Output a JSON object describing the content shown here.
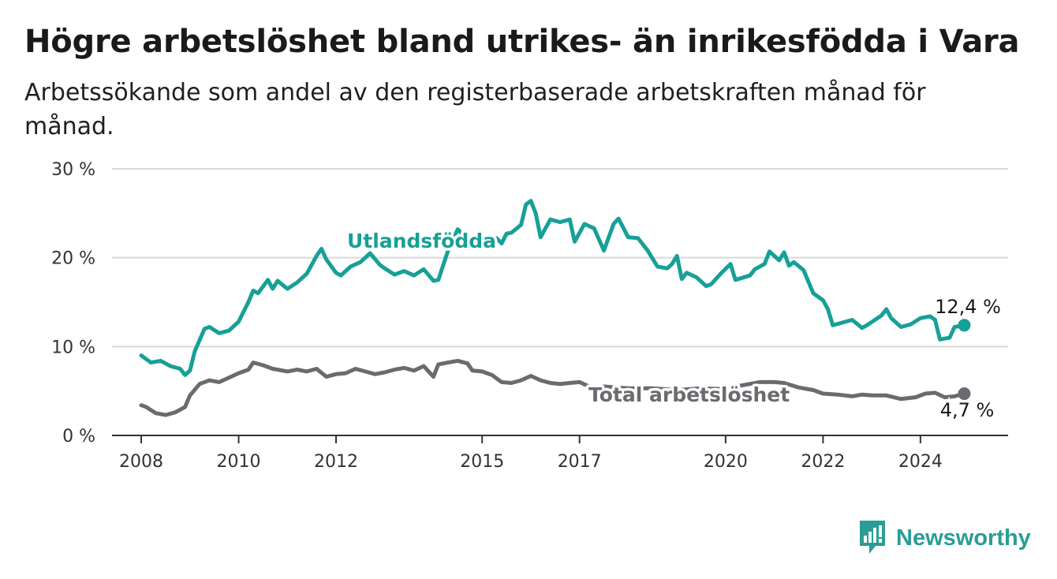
{
  "header": {
    "title": "Högre arbetslöshet bland utrikes- än inrikesfödda i Vara",
    "subtitle": "Arbetssökande som andel av den registerbaserade arbetskraften månad för månad."
  },
  "brand": {
    "name": "Newsworthy",
    "color": "#2a9d96"
  },
  "chart_data": {
    "type": "line",
    "x_axis": {
      "ticks": [
        {
          "value": 2008,
          "label": "2008"
        },
        {
          "value": 2010,
          "label": "2010"
        },
        {
          "value": 2012,
          "label": "2012"
        },
        {
          "value": 2015,
          "label": "2015"
        },
        {
          "value": 2017,
          "label": "2017"
        },
        {
          "value": 2020,
          "label": "2020"
        },
        {
          "value": 2022,
          "label": "2022"
        },
        {
          "value": 2024,
          "label": "2024"
        }
      ],
      "range": [
        2007.4,
        2025.8
      ]
    },
    "y_axis": {
      "ticks": [
        {
          "value": 0,
          "label": "0 %"
        },
        {
          "value": 10,
          "label": "10 %"
        },
        {
          "value": 20,
          "label": "20 %"
        },
        {
          "value": 30,
          "label": "30 %"
        }
      ],
      "range": [
        0,
        30
      ],
      "grid": true
    },
    "series": [
      {
        "name": "Utlandsfödda",
        "color": "#17a097",
        "end_label": "12,4 %",
        "points": [
          [
            2008.0,
            9.0
          ],
          [
            2008.2,
            8.2
          ],
          [
            2008.4,
            8.4
          ],
          [
            2008.6,
            7.8
          ],
          [
            2008.8,
            7.5
          ],
          [
            2008.9,
            6.8
          ],
          [
            2009.0,
            7.3
          ],
          [
            2009.1,
            9.5
          ],
          [
            2009.3,
            12.0
          ],
          [
            2009.4,
            12.2
          ],
          [
            2009.6,
            11.5
          ],
          [
            2009.8,
            11.8
          ],
          [
            2010.0,
            12.8
          ],
          [
            2010.2,
            15.0
          ],
          [
            2010.3,
            16.3
          ],
          [
            2010.4,
            16.0
          ],
          [
            2010.6,
            17.5
          ],
          [
            2010.7,
            16.5
          ],
          [
            2010.8,
            17.4
          ],
          [
            2011.0,
            16.5
          ],
          [
            2011.2,
            17.2
          ],
          [
            2011.4,
            18.2
          ],
          [
            2011.6,
            20.2
          ],
          [
            2011.7,
            21.0
          ],
          [
            2011.8,
            19.8
          ],
          [
            2012.0,
            18.3
          ],
          [
            2012.1,
            18.0
          ],
          [
            2012.3,
            19.0
          ],
          [
            2012.5,
            19.5
          ],
          [
            2012.7,
            20.5
          ],
          [
            2012.9,
            19.2
          ],
          [
            2013.0,
            18.8
          ],
          [
            2013.2,
            18.1
          ],
          [
            2013.4,
            18.5
          ],
          [
            2013.6,
            18.0
          ],
          [
            2013.8,
            18.7
          ],
          [
            2014.0,
            17.4
          ],
          [
            2014.1,
            17.5
          ],
          [
            2014.3,
            20.8
          ],
          [
            2014.5,
            23.2
          ],
          [
            2014.7,
            22.0
          ],
          [
            2014.9,
            21.5
          ],
          [
            2015.0,
            21.2
          ],
          [
            2015.1,
            21.2
          ],
          [
            2015.3,
            22.2
          ],
          [
            2015.4,
            21.6
          ],
          [
            2015.5,
            22.7
          ],
          [
            2015.6,
            22.8
          ],
          [
            2015.8,
            23.7
          ],
          [
            2015.9,
            26.0
          ],
          [
            2016.0,
            26.4
          ],
          [
            2016.1,
            25.0
          ],
          [
            2016.2,
            22.3
          ],
          [
            2016.4,
            24.3
          ],
          [
            2016.6,
            24.0
          ],
          [
            2016.8,
            24.3
          ],
          [
            2016.9,
            21.8
          ],
          [
            2017.1,
            23.8
          ],
          [
            2017.3,
            23.3
          ],
          [
            2017.5,
            20.8
          ],
          [
            2017.7,
            23.8
          ],
          [
            2017.8,
            24.4
          ],
          [
            2018.0,
            22.3
          ],
          [
            2018.2,
            22.2
          ],
          [
            2018.4,
            20.8
          ],
          [
            2018.6,
            19.0
          ],
          [
            2018.8,
            18.8
          ],
          [
            2018.9,
            19.3
          ],
          [
            2019.0,
            20.2
          ],
          [
            2019.1,
            17.6
          ],
          [
            2019.2,
            18.3
          ],
          [
            2019.4,
            17.8
          ],
          [
            2019.6,
            16.8
          ],
          [
            2019.7,
            17.0
          ],
          [
            2019.9,
            18.2
          ],
          [
            2020.1,
            19.3
          ],
          [
            2020.2,
            17.5
          ],
          [
            2020.5,
            18.0
          ],
          [
            2020.6,
            18.7
          ],
          [
            2020.8,
            19.3
          ],
          [
            2020.9,
            20.7
          ],
          [
            2021.1,
            19.7
          ],
          [
            2021.2,
            20.6
          ],
          [
            2021.3,
            19.1
          ],
          [
            2021.4,
            19.5
          ],
          [
            2021.6,
            18.6
          ],
          [
            2021.8,
            16.0
          ],
          [
            2022.0,
            15.2
          ],
          [
            2022.1,
            14.2
          ],
          [
            2022.2,
            12.4
          ],
          [
            2022.4,
            12.7
          ],
          [
            2022.6,
            13.0
          ],
          [
            2022.8,
            12.1
          ],
          [
            2022.9,
            12.4
          ],
          [
            2023.2,
            13.5
          ],
          [
            2023.3,
            14.2
          ],
          [
            2023.4,
            13.2
          ],
          [
            2023.6,
            12.2
          ],
          [
            2023.8,
            12.5
          ],
          [
            2024.0,
            13.2
          ],
          [
            2024.2,
            13.4
          ],
          [
            2024.3,
            13.0
          ],
          [
            2024.4,
            10.8
          ],
          [
            2024.6,
            11.0
          ],
          [
            2024.7,
            12.2
          ],
          [
            2024.8,
            12.3
          ],
          [
            2024.9,
            12.4
          ]
        ]
      },
      {
        "name": "Total arbetslöshet",
        "color": "#6b6a6f",
        "end_label": "4,7 %",
        "points": [
          [
            2008.0,
            3.4
          ],
          [
            2008.1,
            3.2
          ],
          [
            2008.3,
            2.5
          ],
          [
            2008.5,
            2.3
          ],
          [
            2008.7,
            2.6
          ],
          [
            2008.9,
            3.2
          ],
          [
            2009.0,
            4.5
          ],
          [
            2009.2,
            5.8
          ],
          [
            2009.4,
            6.2
          ],
          [
            2009.6,
            6.0
          ],
          [
            2009.8,
            6.5
          ],
          [
            2010.0,
            7.0
          ],
          [
            2010.2,
            7.4
          ],
          [
            2010.3,
            8.2
          ],
          [
            2010.5,
            7.9
          ],
          [
            2010.7,
            7.5
          ],
          [
            2011.0,
            7.2
          ],
          [
            2011.2,
            7.4
          ],
          [
            2011.4,
            7.2
          ],
          [
            2011.6,
            7.5
          ],
          [
            2011.8,
            6.6
          ],
          [
            2012.0,
            6.9
          ],
          [
            2012.2,
            7.0
          ],
          [
            2012.4,
            7.5
          ],
          [
            2012.6,
            7.2
          ],
          [
            2012.8,
            6.9
          ],
          [
            2013.0,
            7.1
          ],
          [
            2013.2,
            7.4
          ],
          [
            2013.4,
            7.6
          ],
          [
            2013.6,
            7.3
          ],
          [
            2013.8,
            7.8
          ],
          [
            2014.0,
            6.6
          ],
          [
            2014.1,
            8.0
          ],
          [
            2014.3,
            8.2
          ],
          [
            2014.5,
            8.4
          ],
          [
            2014.7,
            8.1
          ],
          [
            2014.8,
            7.3
          ],
          [
            2015.0,
            7.2
          ],
          [
            2015.2,
            6.8
          ],
          [
            2015.4,
            6.0
          ],
          [
            2015.6,
            5.9
          ],
          [
            2015.8,
            6.2
          ],
          [
            2016.0,
            6.7
          ],
          [
            2016.2,
            6.2
          ],
          [
            2016.4,
            5.9
          ],
          [
            2016.6,
            5.8
          ],
          [
            2016.8,
            5.9
          ],
          [
            2017.0,
            6.0
          ],
          [
            2017.2,
            5.5
          ],
          [
            2017.5,
            5.5
          ],
          [
            2018.0,
            5.3
          ],
          [
            2018.5,
            5.3
          ],
          [
            2019.0,
            5.1
          ],
          [
            2019.5,
            5.3
          ],
          [
            2020.0,
            5.2
          ],
          [
            2020.3,
            5.6
          ],
          [
            2020.5,
            5.8
          ],
          [
            2020.7,
            6.0
          ],
          [
            2021.0,
            6.0
          ],
          [
            2021.2,
            5.9
          ],
          [
            2021.5,
            5.4
          ],
          [
            2021.8,
            5.1
          ],
          [
            2022.0,
            4.7
          ],
          [
            2022.3,
            4.6
          ],
          [
            2022.6,
            4.4
          ],
          [
            2022.8,
            4.6
          ],
          [
            2023.0,
            4.5
          ],
          [
            2023.3,
            4.5
          ],
          [
            2023.6,
            4.1
          ],
          [
            2023.9,
            4.3
          ],
          [
            2024.1,
            4.7
          ],
          [
            2024.3,
            4.8
          ],
          [
            2024.5,
            4.3
          ],
          [
            2024.7,
            4.4
          ],
          [
            2024.9,
            4.7
          ]
        ]
      }
    ]
  }
}
